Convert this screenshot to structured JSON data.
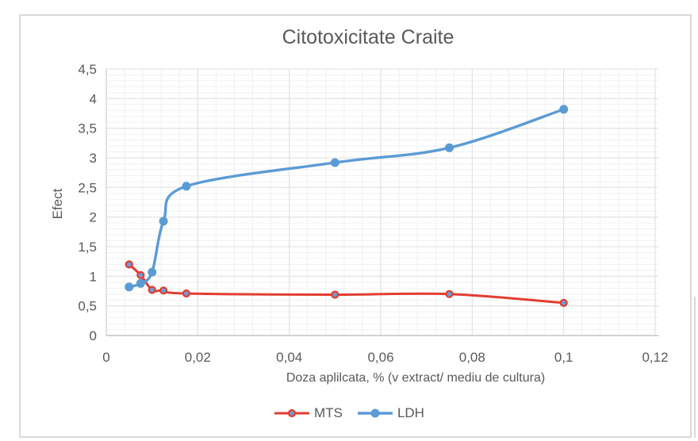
{
  "chart": {
    "title": "Citotoxicitate Craite",
    "x_axis": {
      "title": "Doza aplilcata, % (v extract/ mediu de cultura)",
      "tick_labels": [
        "0",
        "0,02",
        "0,04",
        "0,06",
        "0,08",
        "0,1",
        "0,12"
      ],
      "min": 0,
      "max": 0.12,
      "major_unit": 0.02,
      "minor_unit": 0.004
    },
    "y_axis": {
      "title": "Efect",
      "tick_labels": [
        "0",
        "0,5",
        "1",
        "1,5",
        "2",
        "2,5",
        "3",
        "3,5",
        "4",
        "4,5"
      ],
      "min": 0,
      "max": 4.5,
      "major_unit": 0.5,
      "minor_unit": 0.1
    },
    "colors": {
      "text": "#595959",
      "major_grid": "#dcdcdc",
      "minor_grid": "#f1f1f1",
      "axis_line": "#c4c4c4",
      "frame_border": "#d9d9d9",
      "mts_red": "#e23d31",
      "ldh_blue": "#5b9bd5",
      "mts_marker_fill": "#6f9bd1"
    }
  },
  "chart_data": {
    "type": "line",
    "title": "Citotoxicitate Craite",
    "xlabel": "Doza aplilcata, % (v extract/ mediu de cultura)",
    "ylabel": "Efect",
    "xlim": [
      0,
      0.12
    ],
    "ylim": [
      0,
      4.5
    ],
    "grid": {
      "major": true,
      "minor": true
    },
    "legend_position": "bottom",
    "smooth": true,
    "x": [
      0.005,
      0.0075,
      0.01,
      0.0125,
      0.0175,
      0.05,
      0.075,
      0.1
    ],
    "series": [
      {
        "name": "MTS",
        "values": [
          1.2,
          1.02,
          0.77,
          0.76,
          0.71,
          0.69,
          0.7,
          0.55
        ],
        "line_color": "#e23d31",
        "marker_fill": "#6f9bd1",
        "marker_stroke": "#e23d31",
        "marker_style": "ring-circle"
      },
      {
        "name": "LDH",
        "values": [
          0.82,
          0.88,
          1.07,
          1.93,
          2.52,
          2.92,
          3.17,
          3.82
        ],
        "line_color": "#5b9bd5",
        "marker_fill": "#5b9bd5",
        "marker_stroke": "#5b9bd5",
        "marker_style": "solid-circle"
      }
    ]
  }
}
